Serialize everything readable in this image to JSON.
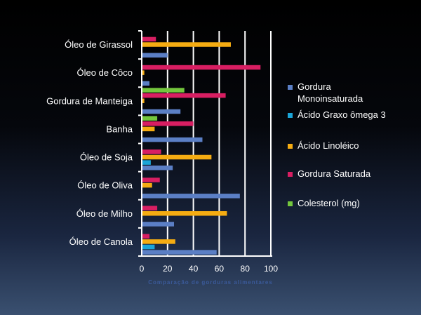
{
  "chart_data": {
    "type": "bar",
    "orientation": "horizontal",
    "categories": [
      "Óleo de Canola",
      "Óleo de Milho",
      "Óleo de Oliva",
      "Óleo de Soja",
      "Banha",
      "Gordura de Manteiga",
      "Óleo de Côco",
      "Óleo de Girassol"
    ],
    "series": [
      {
        "name": "Gordura Monoinsaturada",
        "color": "#5b7fc5",
        "values": [
          58,
          25,
          76,
          24,
          47,
          30,
          6,
          20
        ]
      },
      {
        "name": "Ácido Graxo ômega 3",
        "color": "#1ba5d8",
        "values": [
          10,
          0,
          0,
          7,
          0,
          0,
          0,
          0
        ]
      },
      {
        "name": "Ácido Linoléico",
        "color": "#f5ac12",
        "values": [
          26,
          66,
          8,
          54,
          10,
          2,
          2,
          69
        ]
      },
      {
        "name": "Gordura Saturada",
        "color": "#d81e62",
        "values": [
          6,
          12,
          14,
          15,
          40,
          65,
          92,
          11
        ]
      },
      {
        "name": "Colesterol (mg)",
        "color": "#74c63d",
        "values": [
          0,
          0,
          0,
          0,
          12,
          33,
          0,
          0
        ]
      }
    ],
    "xlim": [
      0,
      100
    ],
    "xticks": [
      "0",
      "20",
      "40",
      "60",
      "80",
      "100"
    ],
    "xlabel": "Comparação de gorduras alimentares",
    "grid": true,
    "legend_position": "right"
  }
}
